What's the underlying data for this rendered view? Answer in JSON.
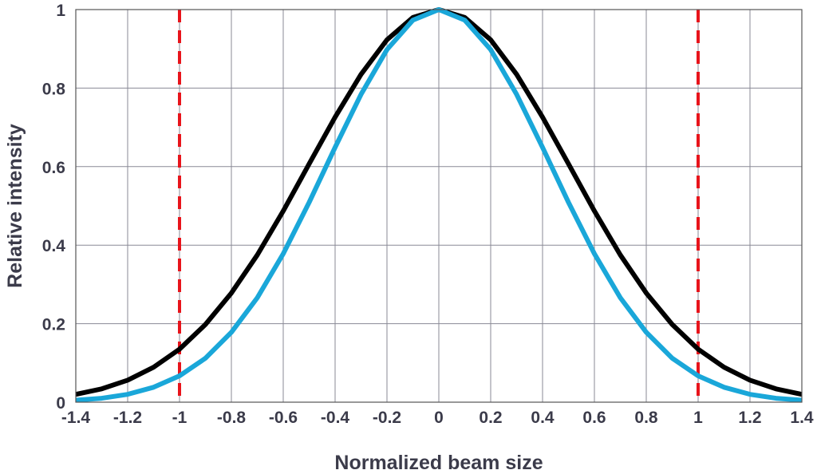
{
  "chart_data": {
    "type": "line",
    "title": "",
    "xlabel": "Normalized beam size",
    "ylabel": "Relative intensity",
    "xlim": [
      -1.4,
      1.4
    ],
    "ylim": [
      0,
      1
    ],
    "xticks": [
      "-1.4",
      "-1.2",
      "-1",
      "-0.8",
      "-0.6",
      "-0.4",
      "-0.2",
      "0",
      "0.2",
      "0.4",
      "0.6",
      "0.8",
      "1",
      "1.2",
      "1.4"
    ],
    "yticks": [
      "0",
      "0.2",
      "0.4",
      "0.6",
      "0.8",
      "1"
    ],
    "grid": true,
    "x": [
      -1.4,
      -1.3,
      -1.2,
      -1.1,
      -1.0,
      -0.9,
      -0.8,
      -0.7,
      -0.6,
      -0.5,
      -0.4,
      -0.3,
      -0.2,
      -0.1,
      0,
      0.1,
      0.2,
      0.3,
      0.4,
      0.5,
      0.6,
      0.7,
      0.8,
      0.9,
      1.0,
      1.1,
      1.2,
      1.3,
      1.4
    ],
    "series": [
      {
        "color": "#000000",
        "values": [
          0.02,
          0.034,
          0.056,
          0.089,
          0.135,
          0.198,
          0.278,
          0.375,
          0.487,
          0.607,
          0.726,
          0.835,
          0.923,
          0.98,
          1.0,
          0.98,
          0.923,
          0.835,
          0.726,
          0.607,
          0.487,
          0.375,
          0.278,
          0.198,
          0.135,
          0.089,
          0.056,
          0.034,
          0.02
        ]
      },
      {
        "color": "#1aa7d9",
        "values": [
          0.005,
          0.01,
          0.02,
          0.038,
          0.067,
          0.112,
          0.178,
          0.266,
          0.378,
          0.509,
          0.649,
          0.784,
          0.898,
          0.973,
          1.0,
          0.973,
          0.898,
          0.784,
          0.649,
          0.509,
          0.378,
          0.266,
          0.178,
          0.112,
          0.067,
          0.038,
          0.02,
          0.01,
          0.005
        ]
      }
    ],
    "vlines": [
      {
        "x": -1,
        "color": "#e8141b",
        "style": "dashed"
      },
      {
        "x": 1,
        "color": "#e8141b",
        "style": "dashed"
      }
    ]
  }
}
